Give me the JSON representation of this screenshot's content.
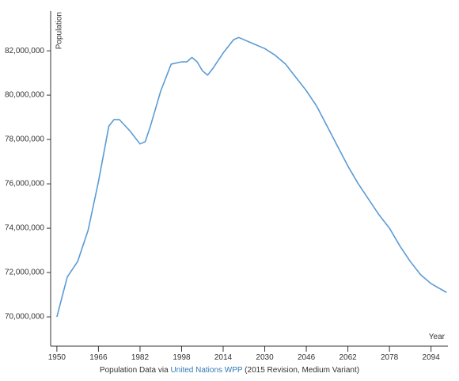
{
  "chart_data": {
    "type": "line",
    "y_label": "Population",
    "x_label": "Year",
    "x": [
      1950,
      1954,
      1958,
      1962,
      1966,
      1970,
      1972,
      1974,
      1978,
      1982,
      1984,
      1986,
      1990,
      1994,
      1998,
      2000,
      2002,
      2004,
      2006,
      2008,
      2010,
      2014,
      2018,
      2020,
      2026,
      2030,
      2034,
      2038,
      2042,
      2046,
      2050,
      2054,
      2058,
      2062,
      2066,
      2070,
      2074,
      2078,
      2082,
      2086,
      2090,
      2094,
      2100
    ],
    "values": [
      70000000,
      71800000,
      72500000,
      73900000,
      76100000,
      78600000,
      78900000,
      78900000,
      78400000,
      77800000,
      77900000,
      78600000,
      80200000,
      81400000,
      81500000,
      81500000,
      81700000,
      81500000,
      81100000,
      80900000,
      81200000,
      81900000,
      82500000,
      82600000,
      82300000,
      82100000,
      81800000,
      81400000,
      80800000,
      80200000,
      79500000,
      78600000,
      77700000,
      76800000,
      76000000,
      75300000,
      74600000,
      74000000,
      73200000,
      72500000,
      71900000,
      71500000,
      71100000
    ],
    "color": "#5b9bd5",
    "xlim": [
      1947.6,
      2100.5
    ],
    "xticks": [
      1950,
      1966,
      1982,
      1998,
      2014,
      2030,
      2046,
      2062,
      2078,
      2094
    ],
    "ylim": [
      68680000,
      83790000
    ],
    "yticks": [
      {
        "value": 70000000,
        "label": "70,000,000"
      },
      {
        "value": 72000000,
        "label": "72,000,000"
      },
      {
        "value": 74000000,
        "label": "74,000,000"
      },
      {
        "value": 76000000,
        "label": "76,000,000"
      },
      {
        "value": 78000000,
        "label": "78,000,000"
      },
      {
        "value": 80000000,
        "label": "80,000,000"
      },
      {
        "value": 82000000,
        "label": "82,000,000"
      }
    ],
    "grid": false
  },
  "source": {
    "prefix": "Population Data via ",
    "link": "United Nations WPP",
    "suffix": " (2015 Revision, Medium Variant)"
  }
}
